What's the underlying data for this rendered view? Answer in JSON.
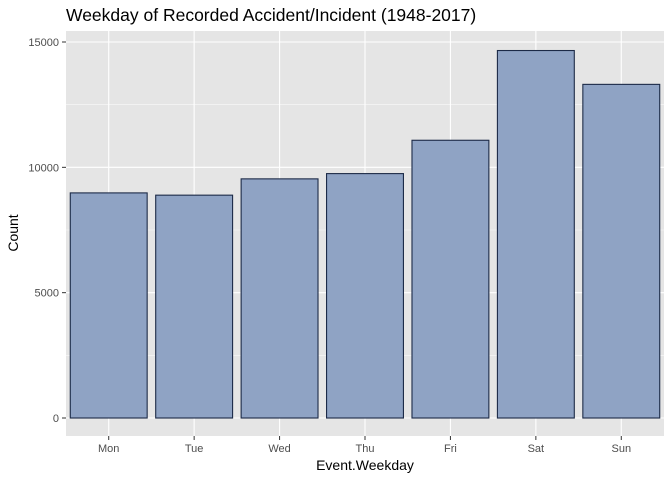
{
  "chart_data": {
    "type": "bar",
    "title": "Weekday of Recorded Accident/Incident (1948-2017)",
    "xlabel": "Event.Weekday",
    "ylabel": "Count",
    "categories": [
      "Mon",
      "Tue",
      "Wed",
      "Thu",
      "Fri",
      "Sat",
      "Sun"
    ],
    "values": [
      8980,
      8890,
      9540,
      9750,
      11080,
      14660,
      13310
    ],
    "ylim": [
      0,
      15500
    ],
    "yticks": [
      0,
      5000,
      10000,
      15000
    ],
    "ytick_labels": [
      "0",
      "5000",
      "10000",
      "15000"
    ],
    "grid": true,
    "legend": "none",
    "colors": {
      "bar_fill": "#8fa3c4",
      "bar_stroke": "#1c2a47",
      "panel_bg": "#e5e5e5",
      "grid_major": "#ffffff"
    }
  }
}
